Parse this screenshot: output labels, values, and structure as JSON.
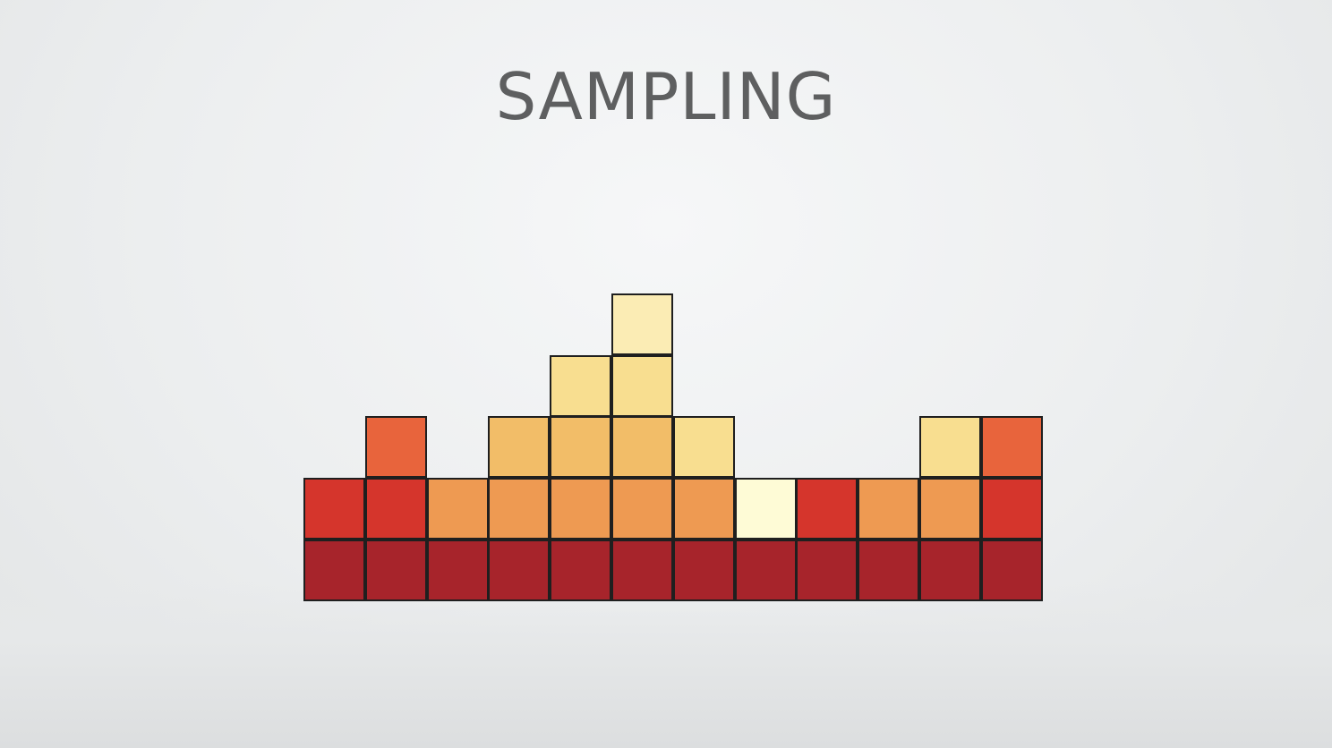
{
  "slide": {
    "title": "SAMPLING"
  },
  "palette": {
    "deep_red": "#a7242b",
    "red": "#d5352c",
    "red_orange": "#e8643c",
    "orange": "#ee9a52",
    "light_orange": "#f2bd68",
    "yellow": "#f8de90",
    "pale_yellow": "#fbecb4",
    "cream": "#fefbd6"
  },
  "columns": [
    [
      "deep_red",
      "red"
    ],
    [
      "deep_red",
      "red",
      "red_orange"
    ],
    [
      "deep_red",
      "orange"
    ],
    [
      "deep_red",
      "orange",
      "light_orange"
    ],
    [
      "deep_red",
      "orange",
      "light_orange",
      "yellow"
    ],
    [
      "deep_red",
      "orange",
      "light_orange",
      "yellow",
      "pale_yellow"
    ],
    [
      "deep_red",
      "orange",
      "yellow"
    ],
    [
      "deep_red",
      "cream"
    ],
    [
      "deep_red",
      "red"
    ],
    [
      "deep_red",
      "orange"
    ],
    [
      "deep_red",
      "orange",
      "yellow"
    ],
    [
      "deep_red",
      "red",
      "red_orange"
    ]
  ]
}
